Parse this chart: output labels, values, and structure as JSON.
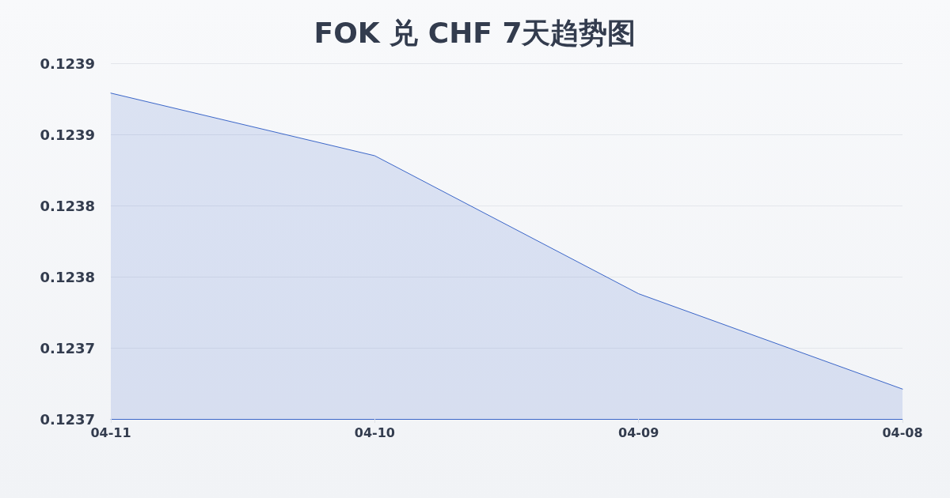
{
  "chart_data": {
    "type": "area",
    "title": "FOK 兑 CHF 7天趋势图",
    "categories": [
      "04-11",
      "04-10",
      "04-09",
      "04-08"
    ],
    "values": [
      0.123879,
      0.123835,
      0.123738,
      0.123671
    ],
    "color": "#3b66c8",
    "ylim": [
      0.12365,
      0.1239
    ],
    "yticks": [
      {
        "value": 0.12365,
        "label": "0.1237"
      },
      {
        "value": 0.1237,
        "label": "0.1237"
      },
      {
        "value": 0.12375,
        "label": "0.1238"
      },
      {
        "value": 0.1238,
        "label": "0.1238"
      },
      {
        "value": 0.12385,
        "label": "0.1239"
      },
      {
        "value": 0.1239,
        "label": "0.1239"
      }
    ],
    "grid": "y",
    "marker": "none"
  }
}
